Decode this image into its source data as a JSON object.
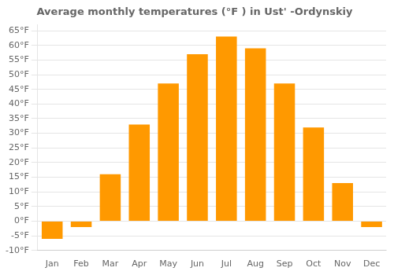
{
  "chart_data": {
    "type": "bar",
    "title": "Average monthly temperatures (°F ) in Ust' -Ordynskiy",
    "categories": [
      "Jan",
      "Feb",
      "Mar",
      "Apr",
      "May",
      "Jun",
      "Jul",
      "Aug",
      "Sep",
      "Oct",
      "Nov",
      "Dec"
    ],
    "values": [
      -6,
      -2,
      16,
      33,
      47,
      57,
      63,
      59,
      47,
      32,
      13,
      -2
    ],
    "color": "#FF9900",
    "ylim": [
      -10,
      67
    ],
    "yticks": [
      {
        "value": -10,
        "label": "-10°F"
      },
      {
        "value": -5,
        "label": "-5°F"
      },
      {
        "value": 0,
        "label": "0°F"
      },
      {
        "value": 5,
        "label": "5°F"
      },
      {
        "value": 10,
        "label": "10°F"
      },
      {
        "value": 15,
        "label": "15°F"
      },
      {
        "value": 20,
        "label": "20°F"
      },
      {
        "value": 25,
        "label": "25°F"
      },
      {
        "value": 30,
        "label": "30°F"
      },
      {
        "value": 35,
        "label": "35°F"
      },
      {
        "value": 40,
        "label": "40°F"
      },
      {
        "value": 45,
        "label": "45°F"
      },
      {
        "value": 50,
        "label": "50°F"
      },
      {
        "value": 55,
        "label": "55°F"
      },
      {
        "value": 60,
        "label": "60°F"
      },
      {
        "value": 65,
        "label": "65°F"
      }
    ],
    "grid": true
  }
}
